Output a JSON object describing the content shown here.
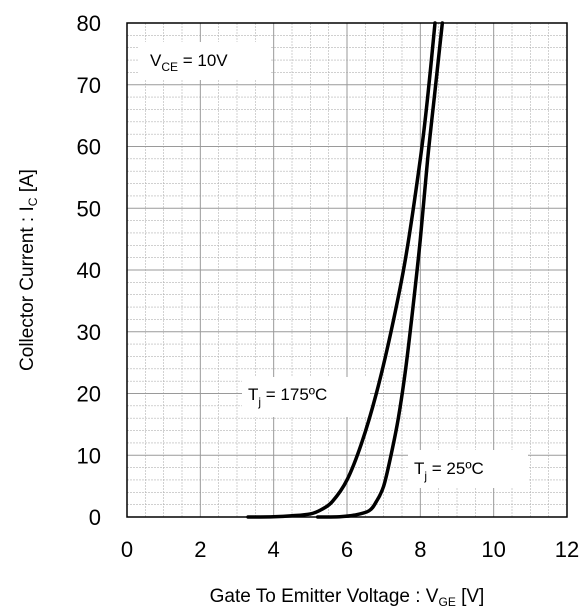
{
  "chart_data": {
    "type": "line",
    "title": "",
    "xlabel": {
      "main": "Gate To Emitter Voltage : V",
      "sub": "GE",
      "unit": " [V]"
    },
    "ylabel": {
      "main": "Collector Current : I",
      "sub": "C",
      "unit": " [A]"
    },
    "xlim": [
      0,
      12
    ],
    "ylim": [
      0,
      80
    ],
    "x_ticks": [
      0,
      2,
      4,
      6,
      8,
      10,
      12
    ],
    "y_ticks": [
      0,
      10,
      20,
      30,
      40,
      50,
      60,
      70,
      80
    ],
    "x_minor_step": 0.5,
    "y_minor_step": 2,
    "grid": true,
    "annotations": {
      "vce": {
        "base": "V",
        "sub": "CE",
        "rest": " = 10V"
      },
      "tj175": {
        "base": "T",
        "sub": "j",
        "rest": " = 175ºC"
      },
      "tj25": {
        "base": "T",
        "sub": "j",
        "rest": " = 25ºC"
      }
    },
    "series": [
      {
        "color": "#000000",
        "x": [
          3.3,
          4.0,
          4.5,
          5.0,
          5.3,
          5.6,
          6.0,
          6.4,
          6.8,
          7.2,
          7.6,
          8.0,
          8.2,
          8.4
        ],
        "y": [
          0,
          0.05,
          0.2,
          0.5,
          1.2,
          2.5,
          6,
          12,
          20,
          30,
          42,
          58,
          68,
          80
        ]
      },
      {
        "color": "#000000",
        "x": [
          5.2,
          5.8,
          6.2,
          6.6,
          6.8,
          7.0,
          7.2,
          7.4,
          7.6,
          7.8,
          8.0,
          8.2,
          8.4,
          8.6
        ],
        "y": [
          0,
          0.05,
          0.3,
          1,
          2.5,
          5,
          10,
          16,
          24,
          34,
          45,
          58,
          69,
          80
        ]
      }
    ]
  },
  "colors": {
    "curve": "#000000",
    "grid": "#9a9a9a",
    "minor_grid": "#b4b4b4",
    "frame": "#000000"
  }
}
